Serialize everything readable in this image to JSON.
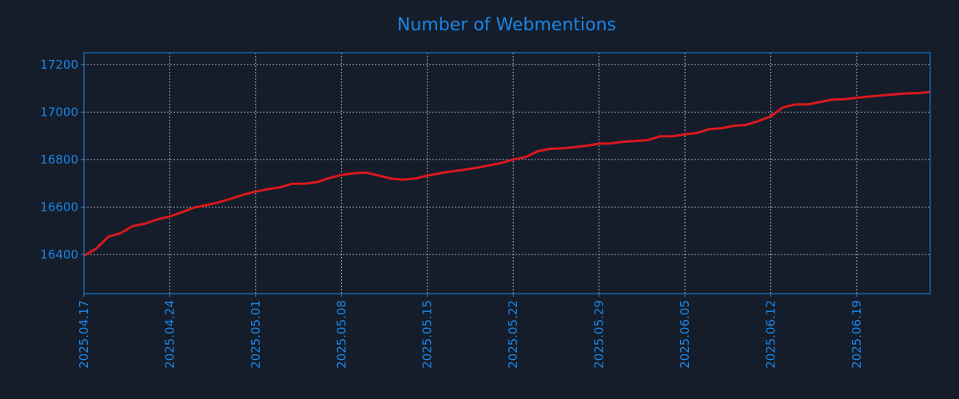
{
  "chart_data": {
    "type": "line",
    "title": "Number of Webmentions",
    "x": [
      "2025.04.17",
      "2025.04.18",
      "2025.04.19",
      "2025.04.20",
      "2025.04.21",
      "2025.04.22",
      "2025.04.23",
      "2025.04.24",
      "2025.04.25",
      "2025.04.26",
      "2025.04.27",
      "2025.04.28",
      "2025.04.29",
      "2025.04.30",
      "2025.05.01",
      "2025.05.02",
      "2025.05.03",
      "2025.05.04",
      "2025.05.05",
      "2025.05.06",
      "2025.05.07",
      "2025.05.08",
      "2025.05.09",
      "2025.05.10",
      "2025.05.11",
      "2025.05.12",
      "2025.05.13",
      "2025.05.14",
      "2025.05.15",
      "2025.05.16",
      "2025.05.17",
      "2025.05.18",
      "2025.05.19",
      "2025.05.20",
      "2025.05.21",
      "2025.05.22",
      "2025.05.23",
      "2025.05.24",
      "2025.05.25",
      "2025.05.26",
      "2025.05.27",
      "2025.05.28",
      "2025.05.29",
      "2025.05.30",
      "2025.05.31",
      "2025.06.01",
      "2025.06.02",
      "2025.06.03",
      "2025.06.04",
      "2025.06.05",
      "2025.06.06",
      "2025.06.07",
      "2025.06.08",
      "2025.06.09",
      "2025.06.10",
      "2025.06.11",
      "2025.06.12",
      "2025.06.13",
      "2025.06.14",
      "2025.06.15",
      "2025.06.16",
      "2025.06.17",
      "2025.06.18",
      "2025.06.19",
      "2025.06.20",
      "2025.06.21",
      "2025.06.22",
      "2025.06.23",
      "2025.06.24",
      "2025.06.25"
    ],
    "series": [
      {
        "color": "#d9181e",
        "values": [
          16395,
          16425,
          16475,
          16490,
          16520,
          16530,
          16548,
          16560,
          16578,
          16598,
          16608,
          16620,
          16635,
          16652,
          16665,
          16675,
          16683,
          16698,
          16698,
          16705,
          16722,
          16735,
          16742,
          16745,
          16733,
          16720,
          16715,
          16720,
          16732,
          16742,
          16750,
          16757,
          16765,
          16775,
          16785,
          16800,
          16810,
          16835,
          16845,
          16847,
          16852,
          16858,
          16867,
          16868,
          16875,
          16878,
          16882,
          16898,
          16898,
          16906,
          16912,
          16928,
          16932,
          16942,
          16946,
          16962,
          16982,
          17020,
          17032,
          17032,
          17042,
          17052,
          17054,
          17060,
          17065,
          17070,
          17074,
          17078,
          17080,
          17084
        ]
      }
    ],
    "xlim": [
      "2025.04.17",
      "2025.06.25"
    ],
    "xticks": [
      "2025.04.17",
      "2025.04.24",
      "2025.05.01",
      "2025.05.08",
      "2025.05.15",
      "2025.05.22",
      "2025.05.29",
      "2025.06.05",
      "2025.06.12",
      "2025.06.19"
    ],
    "ylim": [
      16235,
      17250
    ],
    "yticks": [
      16400,
      16600,
      16800,
      17000,
      17200
    ],
    "grid": true
  }
}
